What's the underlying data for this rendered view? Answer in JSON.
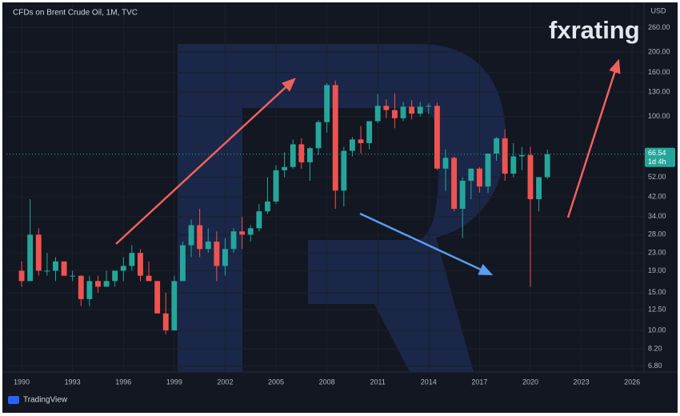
{
  "chart_data": {
    "type": "candlestick",
    "title": "CFDs on Brent Crude Oil, 1M, TVC",
    "currency": "USD",
    "brand": "fxrating",
    "footer": "TradingView",
    "log_scale": true,
    "grid": true,
    "up_color": "#26a69a",
    "down_color": "#ef5350",
    "last_price": 66.54,
    "countdown": "1d 4h",
    "x": [
      1990.0,
      1990.5,
      1991.0,
      1991.5,
      1992.0,
      1992.5,
      1993.0,
      1993.5,
      1994.0,
      1994.5,
      1995.0,
      1995.5,
      1996.0,
      1996.5,
      1997.0,
      1997.5,
      1998.0,
      1998.5,
      1999.0,
      1999.5,
      2000.0,
      2000.5,
      2001.0,
      2001.5,
      2002.0,
      2002.5,
      2003.0,
      2003.5,
      2004.0,
      2004.5,
      2005.0,
      2005.5,
      2006.0,
      2006.5,
      2007.0,
      2007.5,
      2008.0,
      2008.5,
      2009.0,
      2009.5,
      2010.0,
      2010.5,
      2011.0,
      2011.5,
      2012.0,
      2012.5,
      2013.0,
      2013.5,
      2014.0,
      2014.5,
      2015.0,
      2015.5,
      2016.0,
      2016.5,
      2017.0,
      2017.5,
      2018.0,
      2018.5,
      2019.0,
      2019.5,
      2020.0,
      2020.5,
      2021.0
    ],
    "open": [
      19,
      17,
      28,
      19,
      19,
      21,
      18,
      18,
      14,
      17,
      16,
      17,
      19,
      20,
      23,
      18,
      17,
      12,
      10,
      17,
      25,
      31,
      24,
      26,
      20,
      24,
      29,
      28,
      30,
      36,
      40,
      56,
      58,
      74,
      61,
      71,
      94,
      140,
      45,
      69,
      78,
      75,
      95,
      112,
      107,
      98,
      111,
      103,
      111,
      112,
      57,
      64,
      37,
      50,
      57,
      47,
      67,
      79,
      54,
      65,
      66,
      41,
      52
    ],
    "high": [
      21,
      41,
      30,
      23,
      22,
      21,
      19,
      18,
      18,
      18,
      19,
      19,
      22,
      25,
      24,
      21,
      17,
      15,
      18,
      26,
      33,
      37,
      30,
      29,
      27,
      30,
      34,
      31,
      39,
      52,
      59,
      68,
      78,
      79,
      72,
      96,
      143,
      147,
      72,
      80,
      90,
      95,
      127,
      120,
      128,
      117,
      119,
      117,
      115,
      116,
      70,
      65,
      52,
      57,
      58,
      65,
      80,
      87,
      75,
      72,
      72,
      49,
      70
    ],
    "low": [
      16,
      17,
      18,
      18,
      17,
      18,
      17,
      13,
      13,
      15,
      16,
      16,
      17,
      19,
      17,
      17,
      12,
      9.6,
      10,
      17,
      22,
      22,
      23,
      17,
      18,
      23,
      24,
      26,
      29,
      35,
      39,
      52,
      57,
      57,
      50,
      66,
      84,
      37,
      38,
      65,
      67,
      70,
      93,
      98,
      88,
      95,
      97,
      100,
      103,
      56,
      45,
      36,
      27,
      41,
      44,
      44,
      62,
      50,
      52,
      56,
      16,
      36,
      51
    ],
    "close": [
      17,
      28,
      19,
      19,
      21,
      18,
      18,
      14,
      17,
      16,
      17,
      19,
      20,
      23,
      18,
      17,
      12,
      10,
      17,
      25,
      31,
      24,
      26,
      20,
      24,
      29,
      28,
      30,
      36,
      40,
      56,
      58,
      74,
      61,
      71,
      94,
      140,
      45,
      69,
      78,
      75,
      95,
      112,
      107,
      98,
      111,
      103,
      111,
      112,
      57,
      64,
      37,
      50,
      57,
      47,
      67,
      79,
      54,
      65,
      66,
      41,
      52,
      66.54
    ],
    "xlim": [
      1989.1,
      2026.7
    ],
    "xticks": [
      1990,
      1993,
      1996,
      1999,
      2002,
      2005,
      2008,
      2011,
      2014,
      2017,
      2020,
      2023,
      2026
    ],
    "ylim": [
      6.39,
      335
    ],
    "yticks": [
      {
        "value": 260,
        "label": "260.00"
      },
      {
        "value": 200,
        "label": "200.00"
      },
      {
        "value": 160,
        "label": "160.00"
      },
      {
        "value": 130,
        "label": "130.00"
      },
      {
        "value": 100,
        "label": "100.00"
      },
      {
        "value": 52,
        "label": "52.00"
      },
      {
        "value": 42,
        "label": "42.00"
      },
      {
        "value": 34,
        "label": "34.00"
      },
      {
        "value": 28,
        "label": "28.00"
      },
      {
        "value": 23,
        "label": "23.00"
      },
      {
        "value": 19,
        "label": "19.00"
      },
      {
        "value": 15,
        "label": "15.00"
      },
      {
        "value": 12.5,
        "label": "12.50"
      },
      {
        "value": 10,
        "label": "10.00"
      },
      {
        "value": 8.2,
        "label": "8.20"
      },
      {
        "value": 6.8,
        "label": "6.80"
      }
    ]
  }
}
